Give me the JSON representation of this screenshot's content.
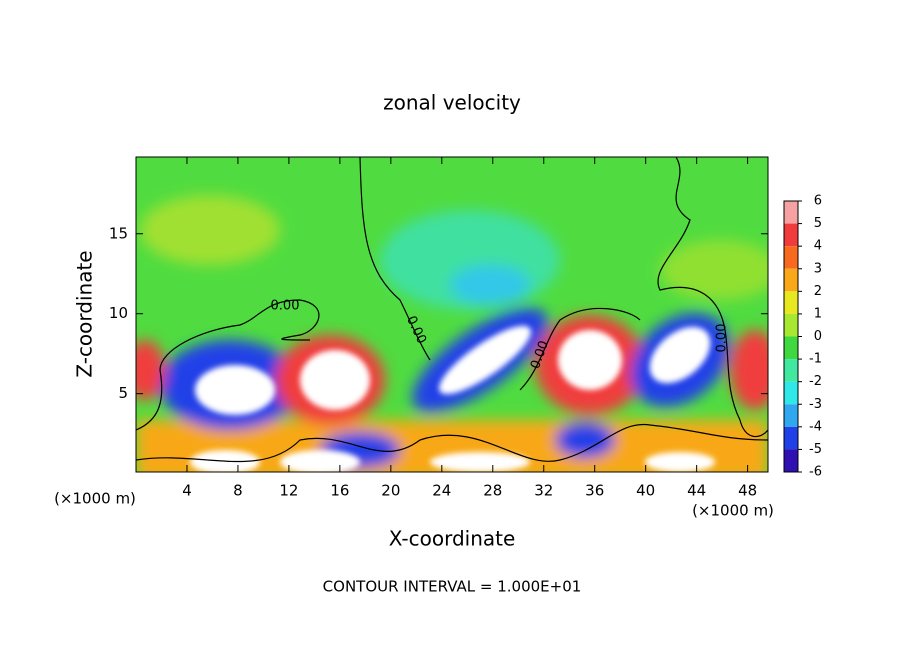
{
  "chart_data": {
    "type": "contour",
    "title": "zonal velocity",
    "x_label": "X-coordinate",
    "y_label": "Z-coordinate",
    "x_unit_labels": [
      "(×1000 m)",
      "(×1000 m)"
    ],
    "footnote": "CONTOUR INTERVAL = 1.000E+01",
    "contour_labels": [
      "0.00",
      "0.00",
      "0.00",
      "0.00"
    ],
    "xlim": [
      0,
      49.6
    ],
    "xticks": [
      4,
      8,
      12,
      16,
      20,
      24,
      28,
      32,
      36,
      40,
      44,
      48
    ],
    "ylim": [
      0.1,
      19.8
    ],
    "yticks": [
      5,
      10,
      15
    ],
    "colorbar": {
      "ticks": [
        6,
        5,
        4,
        3,
        2,
        1,
        0,
        -1,
        -2,
        -3,
        -4,
        -5,
        -6
      ],
      "colors": [
        "#f6a2a2",
        "#f03c3c",
        "#f86a20",
        "#f8a818",
        "#e8e820",
        "#a8e830",
        "#40d840",
        "#40e8a0",
        "#30e8e8",
        "#30a8f0",
        "#2040e8",
        "#3010b0"
      ]
    }
  }
}
